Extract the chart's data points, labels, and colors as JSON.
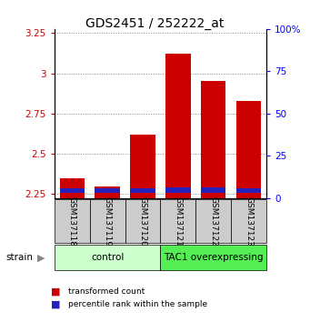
{
  "title": "GDS2451 / 252222_at",
  "samples": [
    "GSM137118",
    "GSM137119",
    "GSM137120",
    "GSM137121",
    "GSM137122",
    "GSM137123"
  ],
  "red_values": [
    2.35,
    2.295,
    2.62,
    3.12,
    2.95,
    2.83
  ],
  "blue_bottom": [
    2.255,
    2.255,
    2.255,
    2.255,
    2.255,
    2.255
  ],
  "blue_heights": [
    0.03,
    0.03,
    0.03,
    0.038,
    0.038,
    0.03
  ],
  "bar_bottom": 2.225,
  "ylim_left": [
    2.225,
    3.275
  ],
  "ylim_right": [
    0,
    100
  ],
  "yticks_left": [
    2.25,
    2.5,
    2.75,
    3.0,
    3.25
  ],
  "yticks_right": [
    0,
    25,
    50,
    75,
    100
  ],
  "ytick_labels_left": [
    "2.25",
    "2.5",
    "2.75",
    "3",
    "3.25"
  ],
  "ytick_labels_right": [
    "0",
    "25",
    "50",
    "75",
    "100%"
  ],
  "groups": [
    {
      "label": "control",
      "start": 0,
      "end": 3,
      "color": "#ccffcc"
    },
    {
      "label": "TAC1 overexpressing",
      "start": 3,
      "end": 6,
      "color": "#55ee55"
    }
  ],
  "legend_items": [
    {
      "color": "#cc0000",
      "label": "transformed count"
    },
    {
      "color": "#0000cc",
      "label": "percentile rank within the sample"
    }
  ],
  "red_color": "#cc0000",
  "blue_color": "#2222bb",
  "bar_width": 0.7,
  "grid_color": "#888888",
  "sample_bg_color": "#cccccc",
  "title_fontsize": 10,
  "tick_fontsize": 7.5,
  "sample_fontsize": 6.5,
  "group_fontsize": 7.5
}
